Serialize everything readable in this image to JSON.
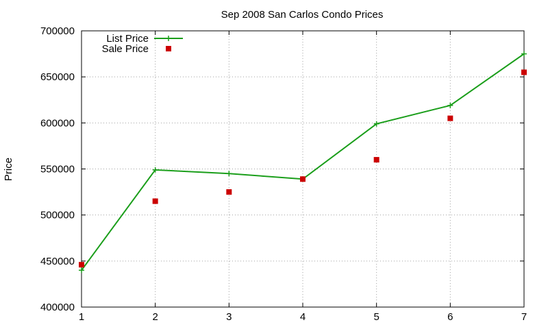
{
  "chart_data": {
    "type": "line",
    "title": "Sep 2008 San Carlos Condo Prices",
    "xlabel": "",
    "ylabel": "Price",
    "x": [
      1,
      2,
      3,
      4,
      5,
      6,
      7
    ],
    "x_ticks": [
      "1",
      "2",
      "3",
      "4",
      "5",
      "6",
      "7"
    ],
    "xlim": [
      1,
      7
    ],
    "ylim": [
      400000,
      700000
    ],
    "y_ticks": [
      "400000",
      "450000",
      "500000",
      "550000",
      "600000",
      "650000",
      "700000"
    ],
    "y_tick_values": [
      400000,
      450000,
      500000,
      550000,
      600000,
      650000,
      700000
    ],
    "grid": true,
    "legend_position": "top-left",
    "series": [
      {
        "name": "List Price",
        "style": "line-plus",
        "color": "#1a9e1a",
        "values": [
          440000,
          549000,
          545000,
          539000,
          599000,
          619000,
          675000
        ]
      },
      {
        "name": "Sale Price",
        "style": "square",
        "color": "#cc0000",
        "values": [
          446000,
          515000,
          525000,
          539000,
          560000,
          605000,
          655000
        ]
      }
    ]
  }
}
